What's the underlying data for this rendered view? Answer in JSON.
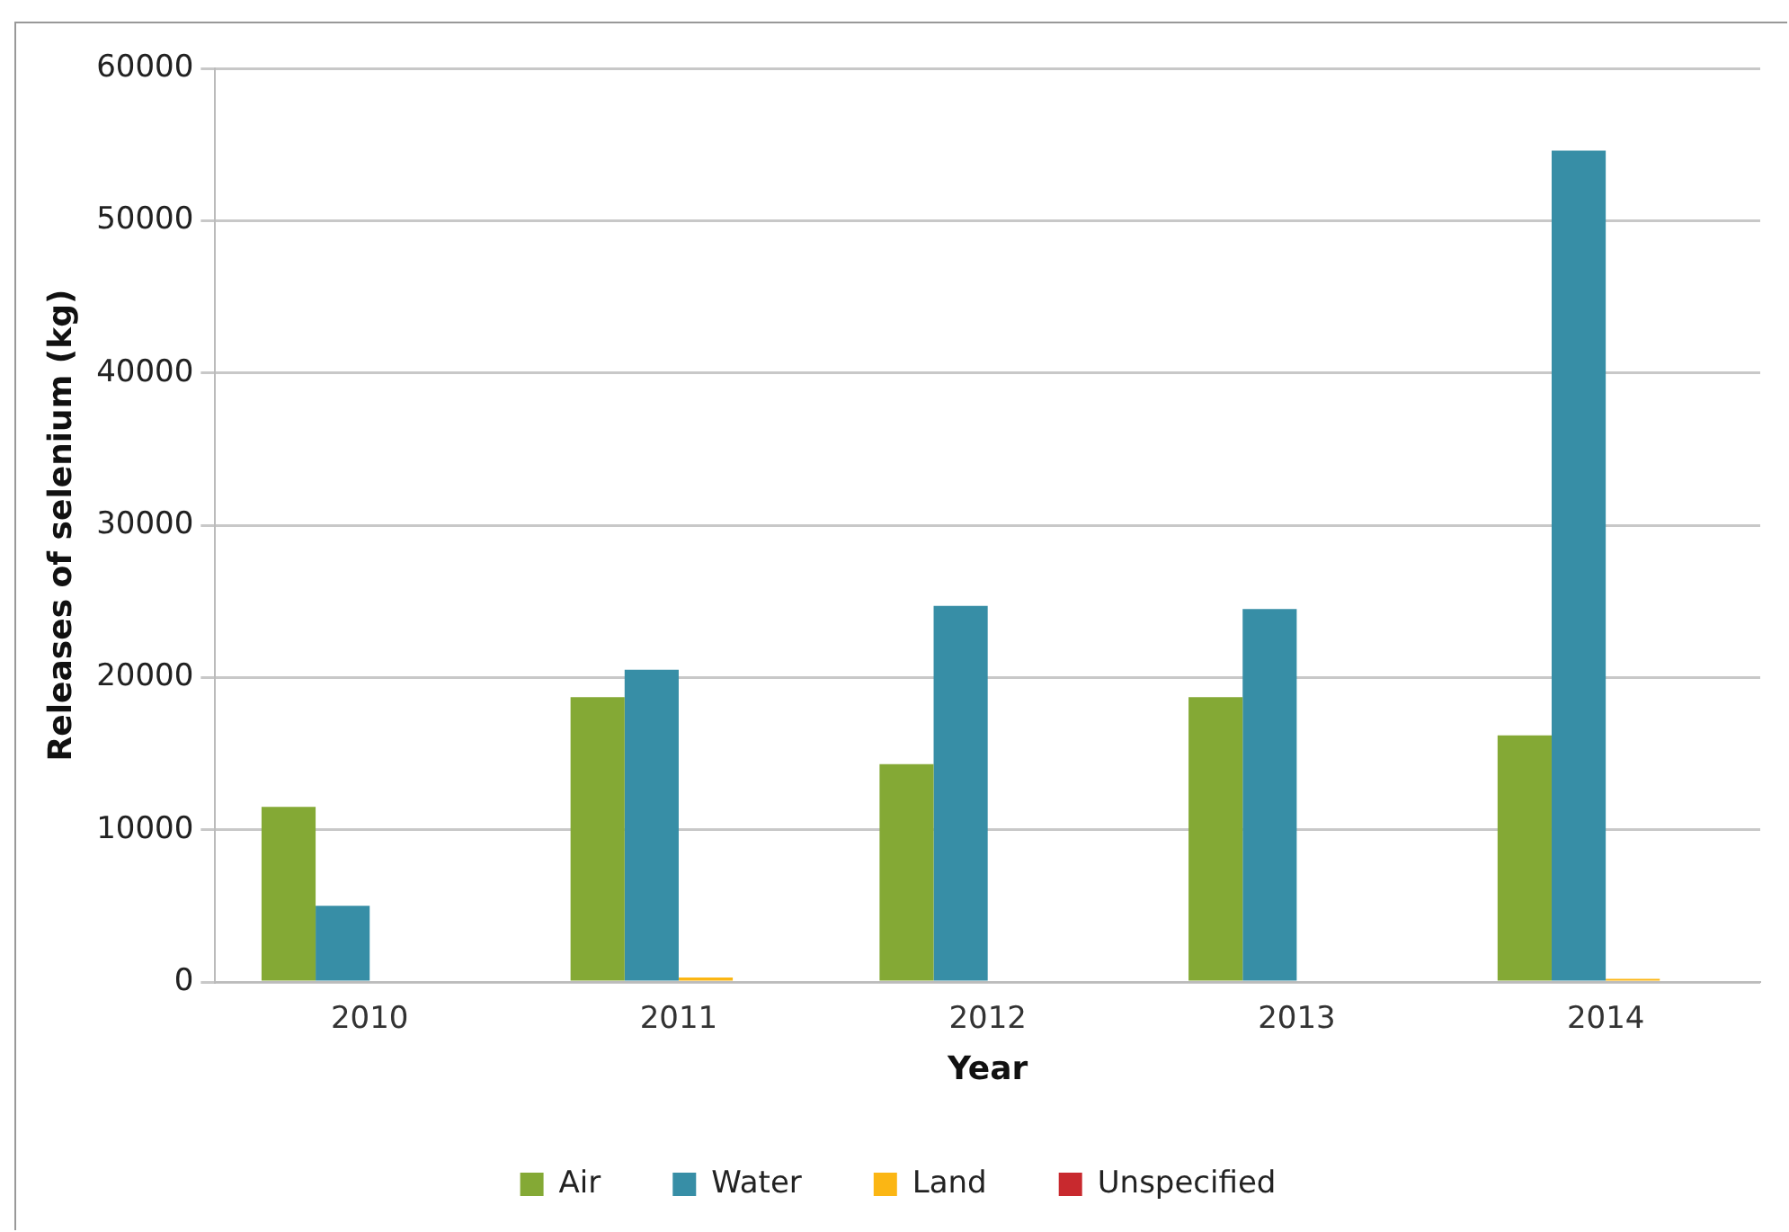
{
  "chart_data": {
    "type": "bar",
    "xlabel": "Year",
    "ylabel": "Releases of selenium (kg)",
    "categories": [
      "2010",
      "2011",
      "2012",
      "2013",
      "2014"
    ],
    "series": [
      {
        "name": "Air",
        "color": "#84a935",
        "values": [
          11500,
          18700,
          14300,
          18700,
          16200
        ]
      },
      {
        "name": "Water",
        "color": "#378ea6",
        "values": [
          5000,
          20500,
          24700,
          24500,
          54600
        ]
      },
      {
        "name": "Land",
        "color": "#fbb614",
        "values": [
          0,
          300,
          0,
          0,
          200
        ]
      },
      {
        "name": "Unspecified",
        "color": "#c8292e",
        "values": [
          0,
          0,
          0,
          0,
          0
        ]
      }
    ],
    "ylim": [
      0,
      60000
    ],
    "yticks": [
      0,
      10000,
      20000,
      30000,
      40000,
      50000,
      60000
    ],
    "grid": "y",
    "legend": "bottom"
  }
}
